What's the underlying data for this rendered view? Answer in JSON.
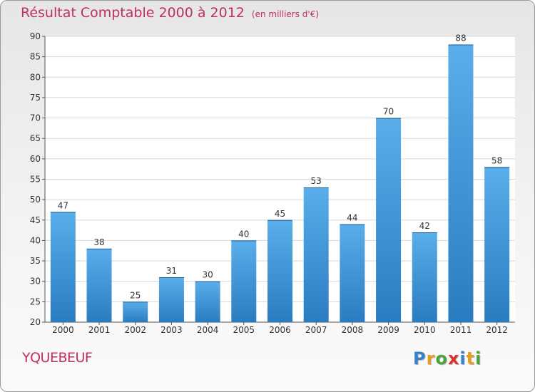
{
  "title": "Résultat Comptable 2000 à 2012",
  "subtitle": "(en milliers d'€)",
  "commune": "YQUEBEUF",
  "logo": {
    "letters": [
      "P",
      "r",
      "o",
      "x",
      "i",
      "t",
      "i"
    ],
    "colors": [
      "#3a7fc9",
      "#e89b26",
      "#4aa33c",
      "#d8322f",
      "#3a7fc9",
      "#e89b26",
      "#4aa33c"
    ]
  },
  "chart_data": {
    "type": "bar",
    "categories": [
      "2000",
      "2001",
      "2002",
      "2003",
      "2004",
      "2005",
      "2006",
      "2007",
      "2008",
      "2009",
      "2010",
      "2011",
      "2012"
    ],
    "values": [
      47,
      38,
      25,
      31,
      30,
      40,
      45,
      53,
      44,
      70,
      42,
      88,
      58
    ],
    "ylim": [
      20,
      90
    ],
    "yticks": [
      20,
      25,
      30,
      35,
      40,
      45,
      50,
      55,
      60,
      65,
      70,
      75,
      80,
      85,
      90
    ],
    "grid": true,
    "bar_color": "#3d97dc"
  }
}
